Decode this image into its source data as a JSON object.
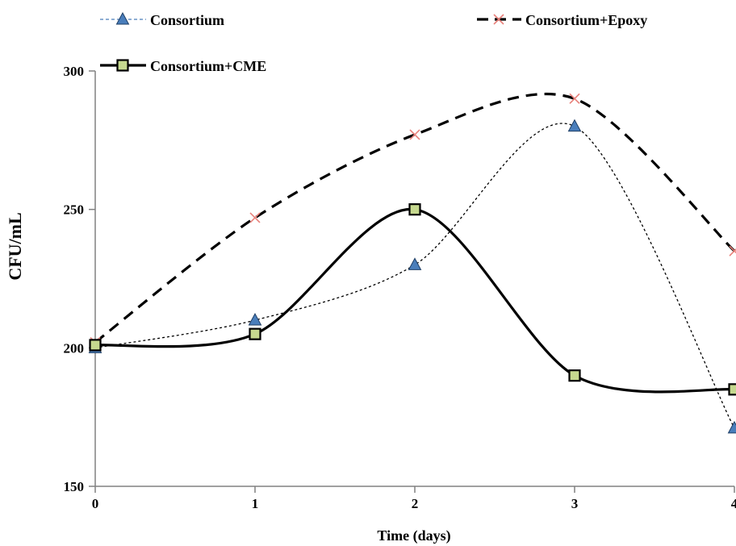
{
  "chart_data": {
    "type": "line",
    "title": "",
    "xlabel": "Time (days)",
    "ylabel": "CFU/mL",
    "x": [
      0,
      1,
      2,
      3,
      4
    ],
    "xlim": [
      0,
      4
    ],
    "ylim": [
      150,
      300
    ],
    "yticks": [
      150,
      200,
      250,
      300
    ],
    "xticks": [
      0,
      1,
      2,
      3,
      4
    ],
    "grid": false,
    "legend_position": "top",
    "series": [
      {
        "name": "Consortium",
        "values": [
          200,
          210,
          230,
          280,
          171
        ],
        "color": "#000000",
        "marker": "triangle",
        "marker_color": "#4a7ebb",
        "line": "dotted",
        "legend_line_color": "#4a7ebb"
      },
      {
        "name": "Consortium+Epoxy",
        "values": [
          202,
          247,
          277,
          290,
          235
        ],
        "color": "#000000",
        "marker": "x",
        "marker_color": "#e8807a",
        "line": "dashed",
        "legend_line_color": "#000000"
      },
      {
        "name": "Consortium+CME",
        "values": [
          201,
          205,
          250,
          190,
          185
        ],
        "color": "#000000",
        "marker": "square",
        "marker_color": "#c6d98f",
        "line": "solid",
        "legend_line_color": "#000000"
      }
    ]
  }
}
